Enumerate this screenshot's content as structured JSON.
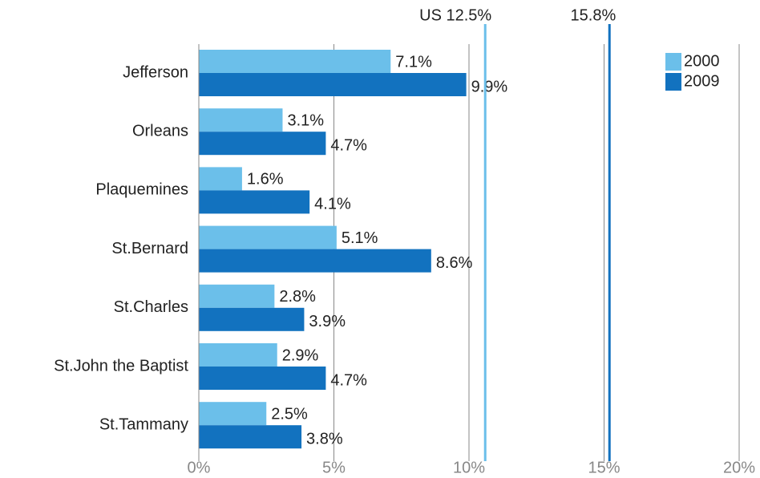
{
  "chart_data": {
    "type": "barh",
    "categories": [
      "Jefferson",
      "Orleans",
      "Plaquemines",
      "St.Bernard",
      "St.Charles",
      "St.John the Baptist",
      "St.Tammany"
    ],
    "series": [
      {
        "name": "2000",
        "color": "#6bbfea",
        "values": [
          7.1,
          3.1,
          1.6,
          5.1,
          2.8,
          2.9,
          2.5
        ],
        "value_labels": [
          "7.1%",
          "3.1%",
          "1.6%",
          "5.1%",
          "2.8%",
          "2.9%",
          "2.5%"
        ]
      },
      {
        "name": "2009",
        "color": "#1272bf",
        "values": [
          9.9,
          4.7,
          4.1,
          8.6,
          3.9,
          4.7,
          3.8
        ],
        "value_labels": [
          "9.9%",
          "4.7%",
          "4.1%",
          "8.6%",
          "3.9%",
          "4.7%",
          "3.8%"
        ]
      }
    ],
    "xlim": [
      0,
      20
    ],
    "xticks": [
      {
        "value": 0,
        "label": "0%"
      },
      {
        "value": 5,
        "label": "5%"
      },
      {
        "value": 10,
        "label": "10%"
      },
      {
        "value": 15,
        "label": "15%"
      },
      {
        "value": 20,
        "label": "20%"
      }
    ],
    "grid": true,
    "legend": "top-right",
    "annotations": [
      {
        "text": "US 12.5%",
        "x": 10.6,
        "color": "#6bbfea"
      },
      {
        "text": "15.8%",
        "x": 15.2,
        "color": "#1272bf"
      }
    ]
  }
}
